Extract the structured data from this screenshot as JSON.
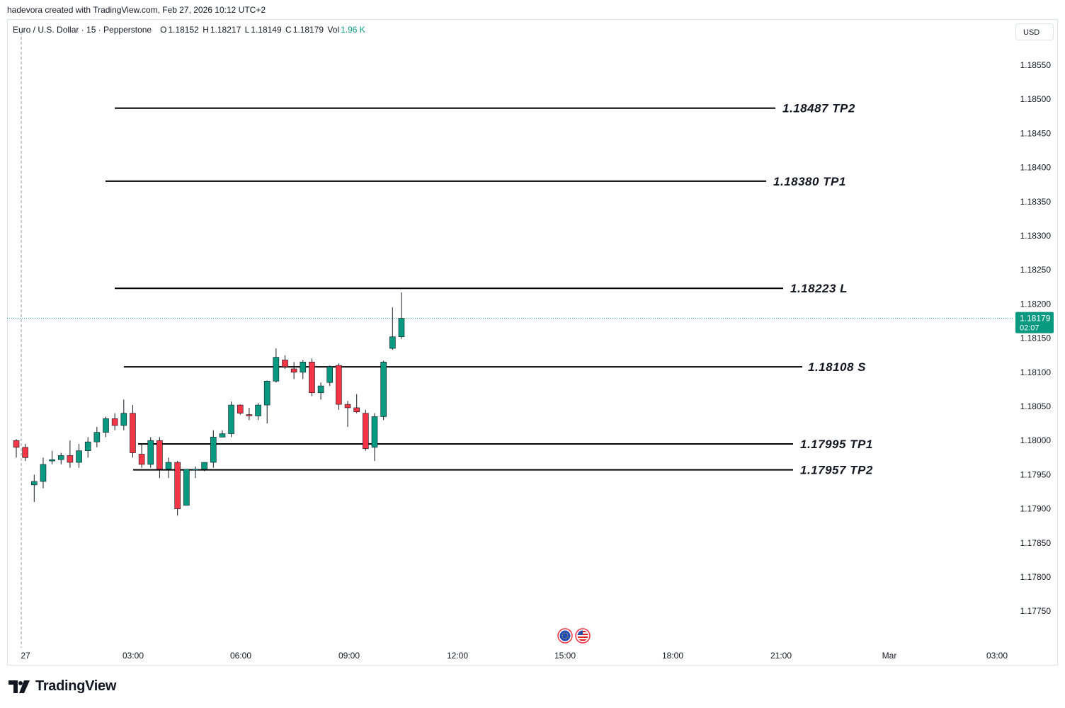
{
  "header": {
    "attribution": "hadevora created with TradingView.com, Feb 27, 2026 10:12 UTC+2"
  },
  "legend": {
    "symbol": "Euro / U.S. Dollar · 15 · Pepperstone",
    "o_label": "O",
    "o_value": "1.18152",
    "h_label": "H",
    "h_value": "1.18217",
    "l_label": "L",
    "l_value": "1.18149",
    "c_label": "C",
    "c_value": "1.18179",
    "vol_label": "Vol",
    "vol_value": "1.96 K"
  },
  "currency_button": "USD",
  "brand": {
    "name": "TradingView"
  },
  "colors": {
    "up": "#089981",
    "down": "#f23645",
    "grid": "#e0e3eb",
    "line": "#000000",
    "last_price": "#089981"
  },
  "chart_data": {
    "type": "candlestick",
    "y_ticks": [
      "1.18550",
      "1.18500",
      "1.18450",
      "1.18400",
      "1.18350",
      "1.18300",
      "1.18250",
      "1.18200",
      "1.18150",
      "1.18100",
      "1.18050",
      "1.18000",
      "1.17950",
      "1.17900",
      "1.17850",
      "1.17800",
      "1.17750"
    ],
    "x_ticks": [
      "27",
      "03:00",
      "06:00",
      "09:00",
      "12:00",
      "15:00",
      "18:00",
      "21:00",
      "Mar",
      "03:00"
    ],
    "last_price": {
      "value": "1.18179",
      "countdown": "02:07"
    },
    "levels": [
      {
        "price": 1.18487,
        "label": "1.18487 TP2"
      },
      {
        "price": 1.1838,
        "label": "1.18380 TP1"
      },
      {
        "price": 1.18223,
        "label": "1.18223 L"
      },
      {
        "price": 1.18108,
        "label": "1.18108 S"
      },
      {
        "price": 1.17995,
        "label": "1.17995 TP1"
      },
      {
        "price": 1.17957,
        "label": "1.17957 TP2"
      }
    ],
    "candles": [
      [
        1.18,
        1.18002,
        1.17975,
        1.1799
      ],
      [
        1.1799,
        1.17995,
        1.1797,
        1.17975
      ],
      [
        1.17935,
        1.1795,
        1.1791,
        1.1794
      ],
      [
        1.1794,
        1.17975,
        1.1793,
        1.17965
      ],
      [
        1.1797,
        1.17985,
        1.17965,
        1.17972
      ],
      [
        1.17972,
        1.17982,
        1.17965,
        1.17978
      ],
      [
        1.17978,
        1.18,
        1.1796,
        1.17968
      ],
      [
        1.17968,
        1.17995,
        1.1796,
        1.17985
      ],
      [
        1.17985,
        1.18005,
        1.17975,
        1.17998
      ],
      [
        1.17998,
        1.1802,
        1.1799,
        1.18012
      ],
      [
        1.18012,
        1.18035,
        1.18005,
        1.18032
      ],
      [
        1.18032,
        1.1804,
        1.18015,
        1.18022
      ],
      [
        1.18022,
        1.1806,
        1.18015,
        1.1804
      ],
      [
        1.1804,
        1.18052,
        1.17975,
        1.17982
      ],
      [
        1.1798,
        1.17995,
        1.1796,
        1.17965
      ],
      [
        1.17965,
        1.18005,
        1.1796,
        1.18
      ],
      [
        1.18,
        1.18005,
        1.17945,
        1.17958
      ],
      [
        1.17958,
        1.17975,
        1.17945,
        1.17968
      ],
      [
        1.17968,
        1.1797,
        1.1789,
        1.179
      ],
      [
        1.17905,
        1.17958,
        1.17905,
        1.17958
      ],
      [
        1.17958,
        1.17962,
        1.17945,
        1.17958
      ],
      [
        1.17958,
        1.17968,
        1.17955,
        1.17968
      ],
      [
        1.17968,
        1.18015,
        1.1796,
        1.18005
      ],
      [
        1.18005,
        1.18015,
        1.18005,
        1.1801
      ],
      [
        1.1801,
        1.18057,
        1.18005,
        1.18052
      ],
      [
        1.18052,
        1.18053,
        1.18038,
        1.1804
      ],
      [
        1.18038,
        1.18048,
        1.1803,
        1.18036
      ],
      [
        1.18036,
        1.18055,
        1.1803,
        1.18052
      ],
      [
        1.18052,
        1.18088,
        1.18025,
        1.18087
      ],
      [
        1.18087,
        1.18135,
        1.18085,
        1.18122
      ],
      [
        1.18118,
        1.18125,
        1.18105,
        1.18108
      ],
      [
        1.18105,
        1.18115,
        1.1809,
        1.181
      ],
      [
        1.181,
        1.18118,
        1.1809,
        1.18115
      ],
      [
        1.18115,
        1.1812,
        1.18065,
        1.1807
      ],
      [
        1.1807,
        1.18085,
        1.1806,
        1.1808
      ],
      [
        1.18085,
        1.1811,
        1.1808,
        1.18108
      ],
      [
        1.1811,
        1.18113,
        1.18045,
        1.18053
      ],
      [
        1.18053,
        1.18058,
        1.1802,
        1.18048
      ],
      [
        1.18048,
        1.18068,
        1.1804,
        1.18042
      ],
      [
        1.1804,
        1.18045,
        1.17985,
        1.17988
      ],
      [
        1.1799,
        1.1804,
        1.1797,
        1.18035
      ],
      [
        1.18035,
        1.18117,
        1.1803,
        1.18115
      ],
      [
        1.18135,
        1.18195,
        1.18133,
        1.18152
      ],
      [
        1.18152,
        1.18217,
        1.18149,
        1.18179
      ]
    ]
  }
}
